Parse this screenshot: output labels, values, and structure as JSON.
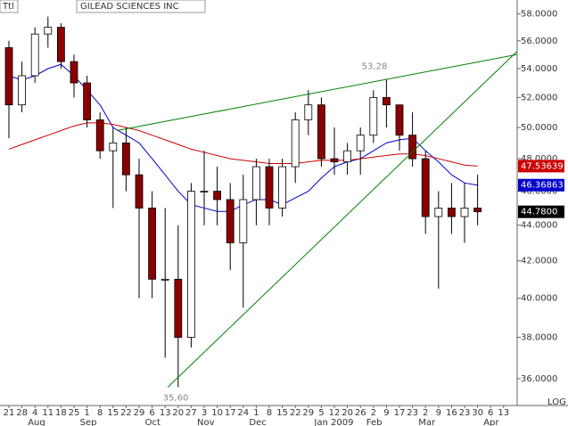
{
  "chart_data": {
    "type": "candlestick",
    "title": "GILEAD SCIENCES INC",
    "tool_label": "Ttl",
    "scale_label": "LOG",
    "log_scale": true,
    "categories": [
      "21",
      "28",
      "4",
      "11",
      "18",
      "25",
      "1",
      "8",
      "15",
      "22",
      "29",
      "6",
      "13",
      "20",
      "27",
      "3",
      "10",
      "17",
      "24",
      "1",
      "8",
      "15",
      "22",
      "29",
      "5",
      "12",
      "20",
      "26",
      "2",
      "9",
      "17",
      "23",
      "2",
      "9",
      "16",
      "23",
      "30",
      "6",
      "13"
    ],
    "months": [
      null,
      null,
      "Aug",
      null,
      null,
      null,
      "Sep",
      null,
      null,
      null,
      null,
      "Oct",
      null,
      null,
      null,
      "Nov",
      null,
      null,
      null,
      "Dec",
      null,
      null,
      null,
      null,
      "Jan 2009",
      null,
      null,
      null,
      "Feb",
      null,
      null,
      null,
      "Mar",
      null,
      null,
      null,
      null,
      "Apr",
      null
    ],
    "open": [
      55.5,
      51.5,
      53.5,
      56.5,
      57,
      54.5,
      53,
      50.5,
      48.5,
      49,
      47,
      45,
      41,
      41,
      38,
      46,
      46,
      45.5,
      43,
      45.5,
      47.5,
      45,
      47.5,
      50.5,
      51.5,
      48,
      47.8,
      48.5,
      49.5,
      52,
      51.5,
      49.5,
      48,
      44.5,
      45,
      44.5,
      45,
      null,
      null
    ],
    "high": [
      56,
      54.5,
      57,
      57.8,
      57.3,
      55,
      53.5,
      51,
      50,
      50,
      48,
      46,
      45,
      44,
      46.5,
      48.5,
      47.5,
      46.5,
      47,
      48,
      48,
      48,
      51,
      52.5,
      52,
      50,
      49,
      50,
      52.5,
      53.28,
      51.5,
      51,
      48.5,
      46,
      46.5,
      46.5,
      47,
      null,
      null
    ],
    "low": [
      49.3,
      51,
      53,
      55.5,
      54,
      52,
      50,
      48,
      45,
      46,
      40,
      40,
      37,
      35.6,
      37.5,
      44,
      44,
      41.5,
      39.5,
      44,
      44,
      44.5,
      46.5,
      49.5,
      47.5,
      47,
      47,
      47,
      49,
      50,
      48.5,
      47.5,
      43.5,
      40.5,
      43.5,
      43,
      44,
      null,
      null
    ],
    "close": [
      51.5,
      53.5,
      56.5,
      57,
      54.5,
      53,
      50.5,
      48.5,
      49,
      47,
      45,
      41,
      41,
      38,
      46,
      46,
      45.5,
      43,
      45.5,
      47.5,
      45,
      47.5,
      50.5,
      51.5,
      48,
      47.8,
      48.5,
      49.5,
      52,
      51.5,
      49.5,
      48,
      44.5,
      45,
      44.5,
      45,
      44.78,
      null,
      null
    ],
    "up_color": "#ffffff",
    "down_color": "#8b0000",
    "series": [
      {
        "color": "#0000cc",
        "values": [
          53.5,
          53.2,
          53.5,
          54,
          54.3,
          53.5,
          52.5,
          51.5,
          50,
          49.5,
          49,
          48,
          47,
          46,
          45.2,
          45,
          44.8,
          44.8,
          45.2,
          45.5,
          45.5,
          45.2,
          45.6,
          46,
          46.8,
          47.5,
          47.8,
          48,
          48.5,
          49,
          49.2,
          49.3,
          48.5,
          47.8,
          47,
          46.5,
          46.36863,
          null,
          null
        ]
      },
      {
        "color": "#cc0000",
        "values": [
          48.6,
          48.9,
          49.2,
          49.5,
          49.8,
          50.1,
          50.3,
          50.3,
          50.2,
          50,
          49.8,
          49.5,
          49.2,
          48.9,
          48.6,
          48.4,
          48.2,
          48,
          47.9,
          47.8,
          47.7,
          47.7,
          47.7,
          47.8,
          47.9,
          47.9,
          47.9,
          48,
          48.1,
          48.2,
          48.3,
          48.3,
          48.2,
          48,
          47.8,
          47.6,
          47.53639,
          null,
          null
        ]
      }
    ],
    "trendlines": [
      {
        "color": "#008000",
        "x": [
          12.2,
          39
        ],
        "values": [
          35.6,
          55.2
        ]
      },
      {
        "color": "#008000",
        "x": [
          8.3,
          39
        ],
        "values": [
          49.8,
          55.0
        ]
      }
    ],
    "annotations": [
      {
        "label": "53,28",
        "value": 53.28
      },
      {
        "label": "35,60",
        "value": 35.6
      }
    ],
    "last_labels": [
      {
        "value": 47.53639,
        "label": "47.53639",
        "color": "#cc0000"
      },
      {
        "value": 46.36863,
        "label": "46.36863",
        "color": "#0000cc"
      },
      {
        "value": 44.78,
        "label": "44.7800",
        "color": "#000000"
      }
    ],
    "ylim": [
      34.76,
      59.07
    ],
    "yticks": [
      {
        "value": 36,
        "label": "36.0000"
      },
      {
        "value": 38,
        "label": "38.0000"
      },
      {
        "value": 40,
        "label": "40.0000"
      },
      {
        "value": 42,
        "label": "42.0000"
      },
      {
        "value": 44,
        "label": "44.0000"
      },
      {
        "value": 46,
        "label": "46.0000"
      },
      {
        "value": 48,
        "label": "48.0000"
      },
      {
        "value": 50,
        "label": "50.0000"
      },
      {
        "value": 52,
        "label": "52.0000"
      },
      {
        "value": 54,
        "label": "54.0000"
      },
      {
        "value": 56,
        "label": "56.0000"
      },
      {
        "value": 58,
        "label": "58.0000"
      }
    ]
  }
}
